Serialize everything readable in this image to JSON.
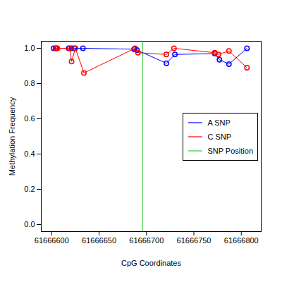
{
  "chart_data": {
    "type": "line",
    "x_label": "CpG Coordinates",
    "y_label": "Methylation Frequency",
    "xlim": [
      61666589,
      61666821
    ],
    "ylim": [
      -0.04,
      1.04
    ],
    "xticks": [
      61666600,
      61666650,
      61666700,
      61666750,
      61666800
    ],
    "yticks": [
      {
        "value": 0,
        "label": "0.0"
      },
      {
        "value": 0.2,
        "label": "0.2"
      },
      {
        "value": 0.4,
        "label": "0.4"
      },
      {
        "value": 0.6,
        "label": "0.6"
      },
      {
        "value": 0.8,
        "label": "0.8"
      },
      {
        "value": 1,
        "label": "1.0"
      }
    ],
    "legend": "right",
    "marker": "circle",
    "series": [
      {
        "name": "A SNP",
        "color": "#0000ff",
        "x": [
          61666602,
          61666605,
          61666618,
          61666621,
          61666624,
          61666633,
          61666687,
          61666690,
          61666721,
          61666730,
          61666772,
          61666777,
          61666787,
          61666806
        ],
        "values": [
          1.0,
          1.0,
          1.0,
          1.0,
          1.0,
          1.0,
          0.995,
          0.99,
          0.915,
          0.965,
          0.97,
          0.935,
          0.91,
          1.0
        ]
      },
      {
        "name": "C SNP",
        "color": "#ff0000",
        "x": [
          61666604,
          61666606,
          61666619,
          61666621,
          61666625,
          61666634,
          61666688,
          61666691,
          61666721,
          61666729,
          61666772,
          61666776,
          61666787,
          61666806
        ],
        "values": [
          1.0,
          1.0,
          1.0,
          0.925,
          1.0,
          0.86,
          1.0,
          0.975,
          0.965,
          1.0,
          0.975,
          0.965,
          0.985,
          0.89
        ]
      }
    ],
    "vline": {
      "name": "SNP Position",
      "x": 61666696,
      "color": "#33cc33"
    }
  }
}
